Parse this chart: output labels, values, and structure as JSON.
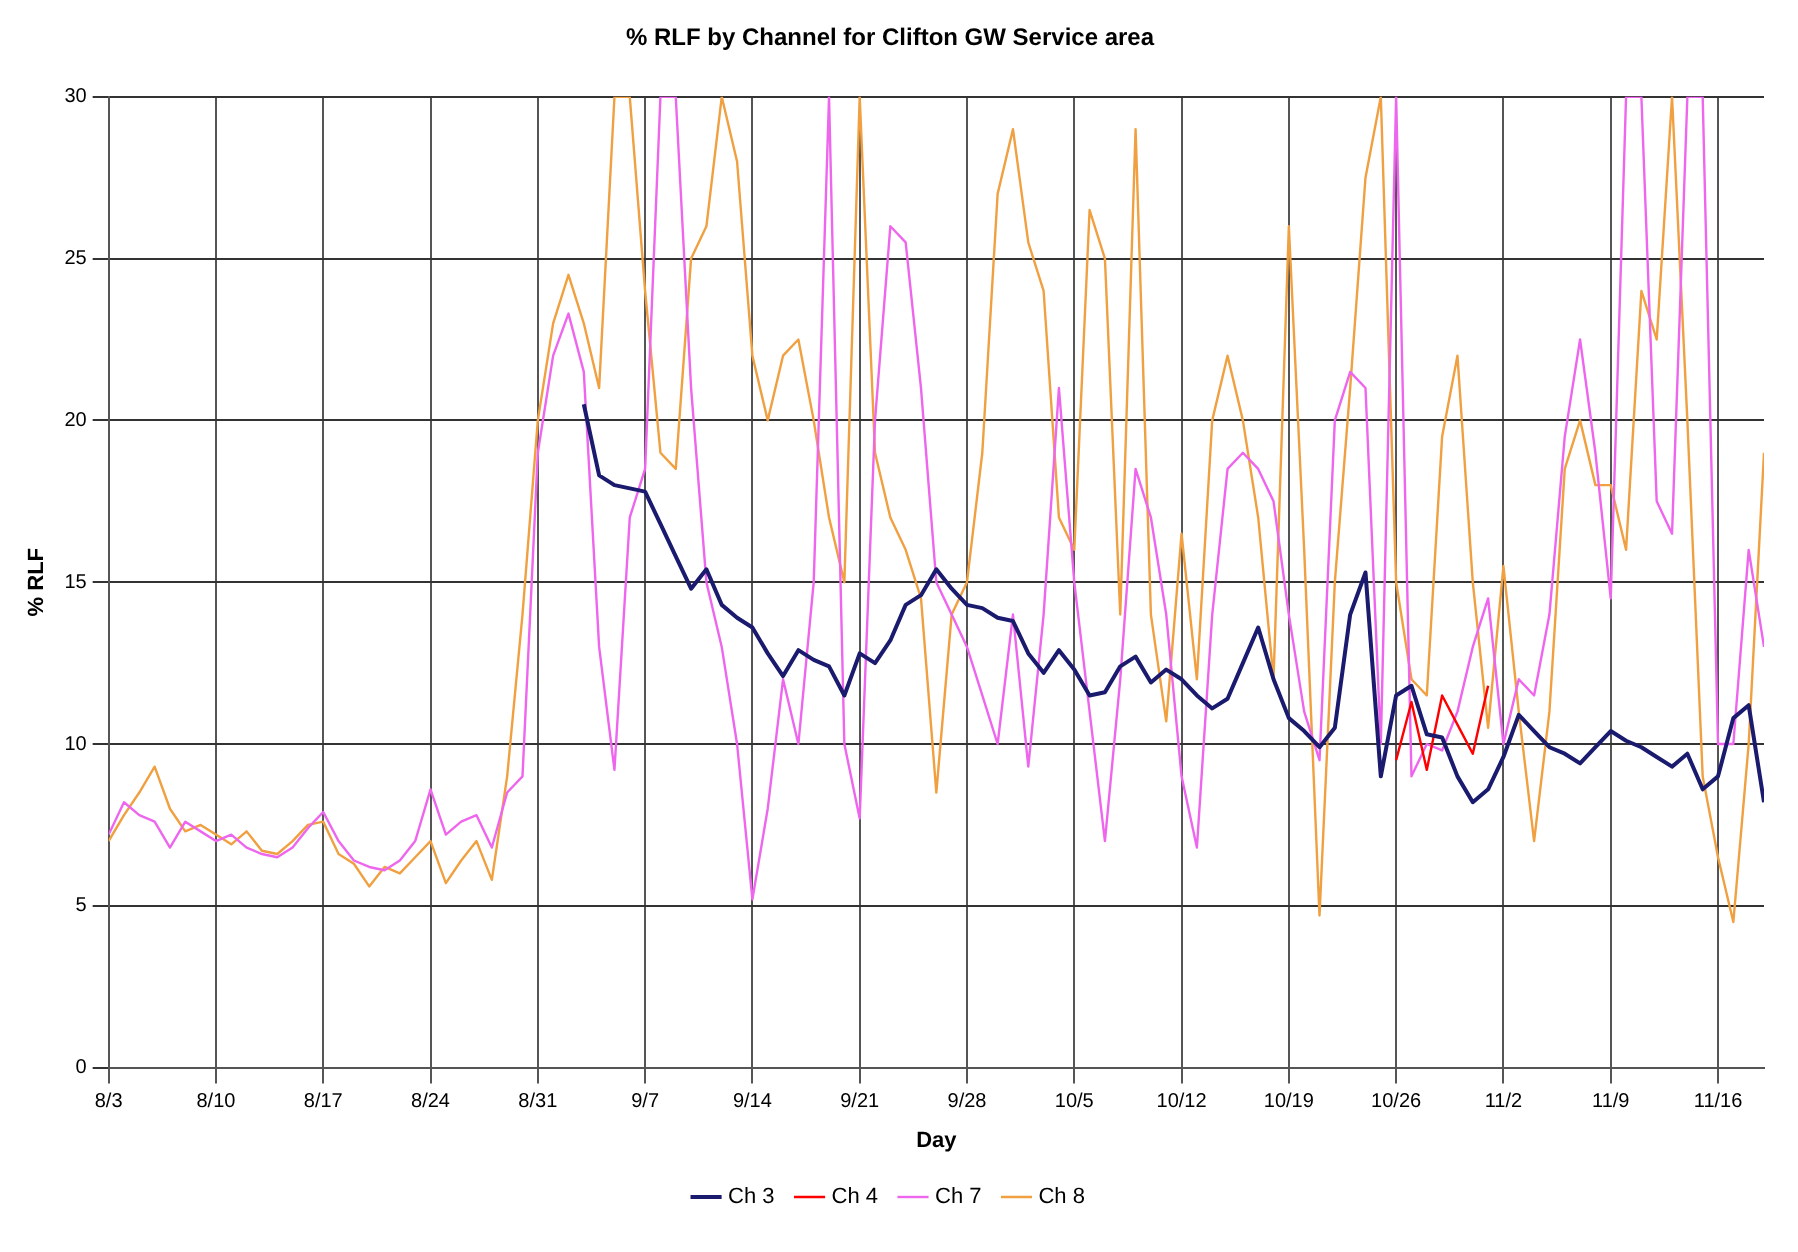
{
  "chart_data": {
    "type": "line",
    "title": "% RLF by Channel for Clifton GW Service area",
    "xlabel": "Day",
    "ylabel": "% RLF",
    "x": [
      "--08-03",
      "--08-04",
      "--08-05",
      "--08-06",
      "--08-07",
      "--08-08",
      "--08-09",
      "--08-10",
      "--08-11",
      "--08-12",
      "--08-13",
      "--08-14",
      "--08-15",
      "--08-16",
      "--08-17",
      "--08-18",
      "--08-19",
      "--08-20",
      "--08-21",
      "--08-22",
      "--08-23",
      "--08-24",
      "--08-25",
      "--08-26",
      "--08-27",
      "--08-28",
      "--08-29",
      "--08-30",
      "--08-31",
      "--09-01",
      "--09-02",
      "--09-03",
      "--09-04",
      "--09-05",
      "--09-06",
      "--09-07",
      "--09-08",
      "--09-09",
      "--09-10",
      "--09-11",
      "--09-12",
      "--09-13",
      "--09-14",
      "--09-15",
      "--09-16",
      "--09-17",
      "--09-18",
      "--09-19",
      "--09-20",
      "--09-21",
      "--09-22",
      "--09-23",
      "--09-24",
      "--09-25",
      "--09-26",
      "--09-27",
      "--09-28",
      "--09-29",
      "--09-30",
      "--10-01",
      "--10-02",
      "--10-03",
      "--10-04",
      "--10-05",
      "--10-06",
      "--10-07",
      "--10-08",
      "--10-09",
      "--10-10",
      "--10-11",
      "--10-12",
      "--10-13",
      "--10-14",
      "--10-15",
      "--10-16",
      "--10-17",
      "--10-18",
      "--10-19",
      "--10-20",
      "--10-21",
      "--10-22",
      "--10-23",
      "--10-24",
      "--10-25",
      "--10-26",
      "--10-27",
      "--10-28",
      "--10-29",
      "--10-30",
      "--10-31",
      "--11-01",
      "--11-02",
      "--11-03",
      "--11-04",
      "--11-05",
      "--11-06",
      "--11-07",
      "--11-08",
      "--11-09",
      "--11-10",
      "--11-11",
      "--11-12",
      "--11-13",
      "--11-14",
      "--11-15",
      "--11-16",
      "--11-17",
      "--11-18",
      "--11-19"
    ],
    "series": [
      {
        "name": "Ch 3",
        "color": "#1a1a6e",
        "values": [
          null,
          null,
          null,
          null,
          null,
          null,
          null,
          null,
          null,
          null,
          null,
          null,
          null,
          null,
          null,
          null,
          null,
          null,
          null,
          null,
          null,
          null,
          null,
          null,
          null,
          null,
          null,
          null,
          null,
          null,
          null,
          20.5,
          18.3,
          18.0,
          17.9,
          17.8,
          16.8,
          15.8,
          14.8,
          15.4,
          14.3,
          13.9,
          13.6,
          12.8,
          12.1,
          12.9,
          12.6,
          12.4,
          11.5,
          12.8,
          12.5,
          13.2,
          14.3,
          14.6,
          15.4,
          14.8,
          14.3,
          14.2,
          13.9,
          13.8,
          12.8,
          12.2,
          12.9,
          12.3,
          11.5,
          11.6,
          12.4,
          12.7,
          11.9,
          12.3,
          12.0,
          11.5,
          11.1,
          11.4,
          12.5,
          13.6,
          12.0,
          10.8,
          10.4,
          9.9,
          10.5,
          14.0,
          15.3,
          9.0,
          11.5,
          11.8,
          10.3,
          10.2,
          9.0,
          8.2,
          8.6,
          9.6,
          10.9,
          10.4,
          9.9,
          9.7,
          9.4,
          9.9,
          10.4,
          10.1,
          9.9,
          9.6,
          9.3,
          9.7,
          8.6,
          9.0,
          10.8,
          11.2,
          8.2
        ]
      },
      {
        "name": "Ch 4",
        "color": "#ff0000",
        "values": [
          null,
          null,
          null,
          null,
          null,
          null,
          null,
          null,
          null,
          null,
          null,
          null,
          null,
          null,
          null,
          null,
          null,
          null,
          null,
          null,
          null,
          null,
          null,
          null,
          null,
          null,
          null,
          null,
          null,
          null,
          null,
          null,
          null,
          null,
          null,
          null,
          null,
          null,
          null,
          null,
          null,
          null,
          null,
          null,
          null,
          null,
          null,
          null,
          null,
          null,
          null,
          null,
          null,
          null,
          null,
          null,
          null,
          null,
          null,
          null,
          null,
          null,
          null,
          null,
          null,
          null,
          null,
          null,
          null,
          null,
          null,
          null,
          null,
          null,
          null,
          null,
          null,
          null,
          null,
          null,
          null,
          null,
          null,
          null,
          9.5,
          11.3,
          9.2,
          11.5,
          10.6,
          9.7,
          11.8,
          null,
          null,
          null,
          null,
          null,
          null,
          null,
          null,
          null,
          null,
          null,
          null,
          null,
          null,
          null,
          null,
          null,
          null
        ]
      },
      {
        "name": "Ch 7",
        "color": "#ee66ee",
        "values": [
          7.2,
          8.2,
          7.8,
          7.6,
          6.8,
          7.6,
          7.3,
          7.0,
          7.2,
          6.8,
          6.6,
          6.5,
          6.8,
          7.4,
          7.9,
          7.0,
          6.4,
          6.2,
          6.1,
          6.4,
          7.0,
          8.6,
          7.2,
          7.6,
          7.8,
          6.8,
          8.5,
          9.0,
          19,
          22,
          23.3,
          21.5,
          13,
          9.2,
          17,
          18.5,
          30,
          30,
          21,
          15,
          13,
          10,
          5.2,
          8,
          12,
          10,
          15,
          30,
          10,
          7.7,
          20,
          26,
          25.5,
          21,
          15,
          14,
          13,
          11.5,
          10,
          14,
          9.3,
          14,
          21,
          15,
          11,
          7.0,
          12,
          18.5,
          17,
          14,
          9,
          6.8,
          14,
          18.5,
          19,
          18.5,
          17.5,
          14,
          11,
          9.5,
          20,
          21.5,
          21,
          10,
          30,
          9,
          10,
          9.8,
          11,
          13,
          14.5,
          10,
          12,
          11.5,
          14,
          19.5,
          22.5,
          19,
          14.5,
          30,
          30,
          17.5,
          16.5,
          30,
          30,
          10,
          10,
          16,
          13
        ]
      },
      {
        "name": "Ch 8",
        "color": "#f0a040",
        "values": [
          7.0,
          7.8,
          8.5,
          9.3,
          8.0,
          7.3,
          7.5,
          7.2,
          6.9,
          7.3,
          6.7,
          6.6,
          7.0,
          7.5,
          7.6,
          6.6,
          6.3,
          5.6,
          6.2,
          6.0,
          6.5,
          7.0,
          5.7,
          6.4,
          7.0,
          5.8,
          9.0,
          14.0,
          20,
          23,
          24.5,
          23,
          21,
          30,
          30,
          24,
          19,
          18.5,
          25,
          26,
          30,
          28,
          22,
          20,
          22,
          22.5,
          20,
          17,
          15,
          30,
          19,
          17,
          16,
          14.5,
          8.5,
          14,
          15,
          19,
          27,
          29,
          25.5,
          24,
          17,
          16,
          26.5,
          25,
          14,
          29,
          14,
          10.7,
          16.5,
          12,
          20,
          22,
          20,
          17,
          12,
          26,
          16,
          4.7,
          15,
          21,
          27.5,
          30,
          15,
          12,
          11.5,
          19.5,
          22,
          15,
          10.5,
          15.5,
          11,
          7,
          11,
          18.5,
          20,
          18,
          18,
          16,
          24,
          22.5,
          30,
          20,
          9,
          6.5,
          4.5,
          10,
          19
        ]
      }
    ],
    "xlim": [
      "--08-03",
      "--11-19"
    ],
    "xticks": [
      {
        "value": "--08-03",
        "label": "8/3"
      },
      {
        "value": "--08-10",
        "label": "8/10"
      },
      {
        "value": "--08-17",
        "label": "8/17"
      },
      {
        "value": "--08-24",
        "label": "8/24"
      },
      {
        "value": "--08-31",
        "label": "8/31"
      },
      {
        "value": "--09-07",
        "label": "9/7"
      },
      {
        "value": "--09-14",
        "label": "9/14"
      },
      {
        "value": "--09-21",
        "label": "9/21"
      },
      {
        "value": "--09-28",
        "label": "9/28"
      },
      {
        "value": "--10-05",
        "label": "10/5"
      },
      {
        "value": "--10-12",
        "label": "10/12"
      },
      {
        "value": "--10-19",
        "label": "10/19"
      },
      {
        "value": "--10-26",
        "label": "10/26"
      },
      {
        "value": "--11-02",
        "label": "11/2"
      },
      {
        "value": "--11-09",
        "label": "11/9"
      },
      {
        "value": "--11-16",
        "label": "11/16"
      }
    ],
    "ylim": [
      0,
      30
    ],
    "yticks": [
      0,
      5,
      10,
      15,
      20,
      25,
      30
    ],
    "grid": true,
    "legend": "bottom",
    "marker": "none",
    "line_style": "solid"
  }
}
